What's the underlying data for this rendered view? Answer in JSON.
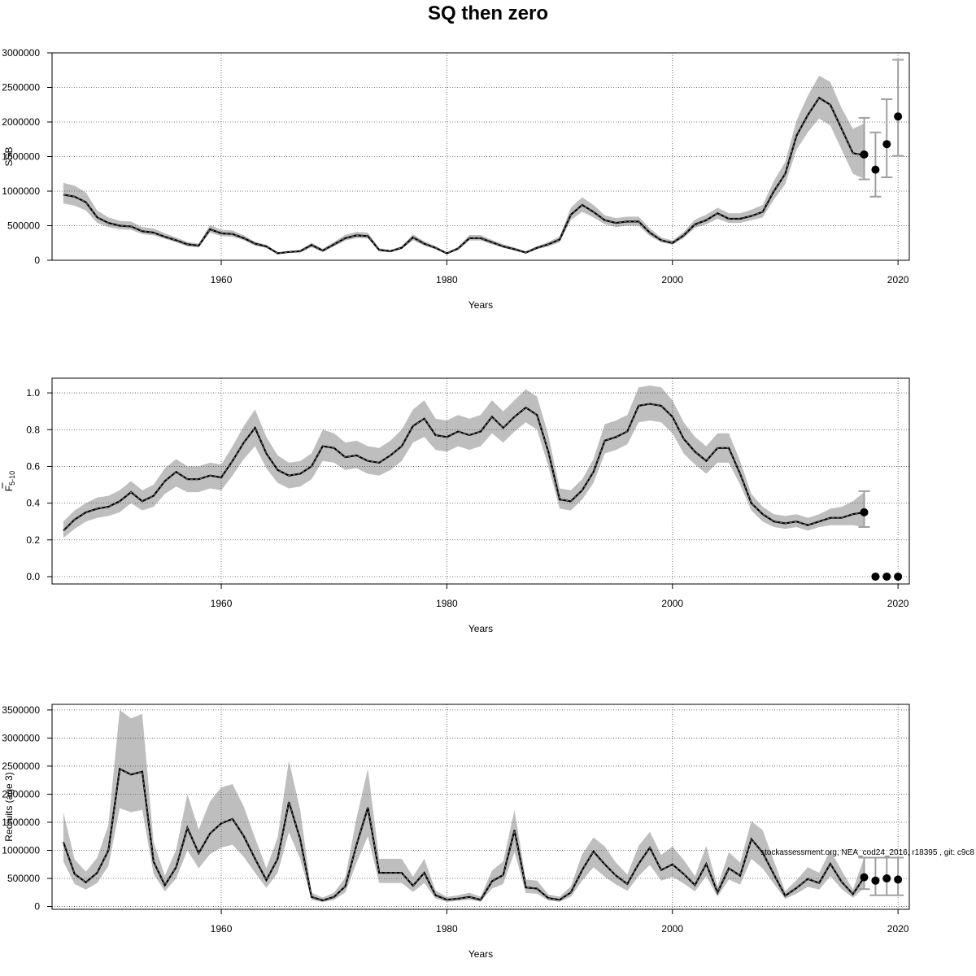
{
  "title": "SQ then zero",
  "footnote": "stockassessment.org, NEA_cod24_2016, r18395 , git: c9c8",
  "colors": {
    "band": "#bebebe",
    "line": "#000000",
    "grid": "#555555",
    "errorbar": "#a0a0a0"
  },
  "chart_data": [
    {
      "type": "line",
      "ylabel": "SSB",
      "xlabel": "Years",
      "xlim": [
        1945,
        2021
      ],
      "ylim": [
        0,
        3000000
      ],
      "xticks": [
        1960,
        1980,
        2000,
        2020
      ],
      "yticks": [
        0,
        500000,
        1000000,
        1500000,
        2000000,
        2500000,
        3000000
      ],
      "ytick_labels": [
        "0",
        "500000",
        "1000000",
        "1500000",
        "2000000",
        "2500000",
        "3000000"
      ],
      "grid": true,
      "x": [
        1946,
        1947,
        1948,
        1949,
        1950,
        1951,
        1952,
        1953,
        1954,
        1955,
        1956,
        1957,
        1958,
        1959,
        1960,
        1961,
        1962,
        1963,
        1964,
        1965,
        1966,
        1967,
        1968,
        1969,
        1970,
        1971,
        1972,
        1973,
        1974,
        1975,
        1976,
        1977,
        1978,
        1979,
        1980,
        1981,
        1982,
        1983,
        1984,
        1985,
        1986,
        1987,
        1988,
        1989,
        1990,
        1991,
        1992,
        1993,
        1994,
        1995,
        1996,
        1997,
        1998,
        1999,
        2000,
        2001,
        2002,
        2003,
        2004,
        2005,
        2006,
        2007,
        2008,
        2009,
        2010,
        2011,
        2012,
        2013,
        2014,
        2015,
        2016,
        2017
      ],
      "estimate": [
        950000,
        920000,
        840000,
        620000,
        540000,
        500000,
        490000,
        420000,
        400000,
        340000,
        290000,
        230000,
        210000,
        450000,
        390000,
        380000,
        320000,
        240000,
        200000,
        100000,
        120000,
        130000,
        220000,
        140000,
        230000,
        320000,
        360000,
        350000,
        150000,
        130000,
        180000,
        330000,
        240000,
        180000,
        100000,
        170000,
        320000,
        320000,
        260000,
        200000,
        160000,
        110000,
        180000,
        230000,
        300000,
        660000,
        800000,
        700000,
        580000,
        540000,
        560000,
        560000,
        400000,
        290000,
        250000,
        360000,
        520000,
        580000,
        680000,
        600000,
        600000,
        640000,
        700000,
        1000000,
        1250000,
        1800000,
        2100000,
        2350000,
        2250000,
        1900000,
        1550000,
        1520000
      ],
      "lower": [
        820000,
        790000,
        720000,
        540000,
        480000,
        450000,
        440000,
        380000,
        360000,
        310000,
        260000,
        200000,
        190000,
        400000,
        350000,
        340000,
        290000,
        210000,
        180000,
        90000,
        105000,
        115000,
        190000,
        120000,
        200000,
        285000,
        320000,
        315000,
        130000,
        115000,
        160000,
        290000,
        210000,
        160000,
        85000,
        150000,
        285000,
        285000,
        230000,
        180000,
        140000,
        95000,
        160000,
        200000,
        260000,
        580000,
        700000,
        620000,
        520000,
        480000,
        500000,
        500000,
        350000,
        260000,
        225000,
        320000,
        470000,
        520000,
        600000,
        540000,
        540000,
        580000,
        620000,
        880000,
        1100000,
        1600000,
        1850000,
        2050000,
        1950000,
        1600000,
        1250000,
        1180000
      ],
      "upper": [
        1120000,
        1080000,
        980000,
        720000,
        620000,
        570000,
        560000,
        480000,
        460000,
        390000,
        330000,
        265000,
        240000,
        510000,
        440000,
        430000,
        360000,
        270000,
        225000,
        115000,
        135000,
        150000,
        255000,
        165000,
        265000,
        370000,
        410000,
        400000,
        175000,
        150000,
        205000,
        375000,
        275000,
        205000,
        115000,
        195000,
        365000,
        365000,
        295000,
        230000,
        185000,
        130000,
        205000,
        265000,
        345000,
        760000,
        910000,
        800000,
        650000,
        610000,
        630000,
        630000,
        460000,
        330000,
        285000,
        410000,
        590000,
        660000,
        760000,
        680000,
        680000,
        730000,
        800000,
        1150000,
        1420000,
        2020000,
        2380000,
        2670000,
        2580000,
        2200000,
        1900000,
        1980000
      ],
      "forecast": [
        {
          "year": 2017,
          "value": 1530000,
          "lower": 1170000,
          "upper": 2060000
        },
        {
          "year": 2018,
          "value": 1310000,
          "lower": 920000,
          "upper": 1850000
        },
        {
          "year": 2019,
          "value": 1680000,
          "lower": 1200000,
          "upper": 2330000
        },
        {
          "year": 2020,
          "value": 2080000,
          "lower": 1510000,
          "upper": 2900000
        }
      ]
    },
    {
      "type": "line",
      "ylabel": "F",
      "ylabel_sub": "5-10",
      "xlabel": "Years",
      "xlim": [
        1945,
        2021
      ],
      "ylim": [
        -0.04,
        1.08
      ],
      "xticks": [
        1960,
        1980,
        2000,
        2020
      ],
      "yticks": [
        0.0,
        0.2,
        0.4,
        0.6,
        0.8,
        1.0
      ],
      "ytick_labels": [
        "0.0",
        "0.2",
        "0.4",
        "0.6",
        "0.8",
        "1.0"
      ],
      "grid": true,
      "x": [
        1946,
        1947,
        1948,
        1949,
        1950,
        1951,
        1952,
        1953,
        1954,
        1955,
        1956,
        1957,
        1958,
        1959,
        1960,
        1961,
        1962,
        1963,
        1964,
        1965,
        1966,
        1967,
        1968,
        1969,
        1970,
        1971,
        1972,
        1973,
        1974,
        1975,
        1976,
        1977,
        1978,
        1979,
        1980,
        1981,
        1982,
        1983,
        1984,
        1985,
        1986,
        1987,
        1988,
        1989,
        1990,
        1991,
        1992,
        1993,
        1994,
        1995,
        1996,
        1997,
        1998,
        1999,
        2000,
        2001,
        2002,
        2003,
        2004,
        2005,
        2006,
        2007,
        2008,
        2009,
        2010,
        2011,
        2012,
        2013,
        2014,
        2015,
        2016,
        2017
      ],
      "estimate": [
        0.25,
        0.31,
        0.35,
        0.37,
        0.38,
        0.41,
        0.46,
        0.41,
        0.44,
        0.52,
        0.57,
        0.53,
        0.53,
        0.55,
        0.54,
        0.63,
        0.73,
        0.81,
        0.67,
        0.58,
        0.55,
        0.56,
        0.6,
        0.71,
        0.7,
        0.65,
        0.66,
        0.63,
        0.62,
        0.66,
        0.71,
        0.82,
        0.86,
        0.77,
        0.76,
        0.79,
        0.77,
        0.79,
        0.87,
        0.81,
        0.87,
        0.92,
        0.88,
        0.68,
        0.42,
        0.41,
        0.47,
        0.57,
        0.74,
        0.76,
        0.79,
        0.93,
        0.94,
        0.93,
        0.87,
        0.75,
        0.68,
        0.63,
        0.7,
        0.7,
        0.56,
        0.4,
        0.34,
        0.3,
        0.29,
        0.3,
        0.28,
        0.3,
        0.32,
        0.32,
        0.34,
        0.35
      ],
      "lower": [
        0.21,
        0.26,
        0.3,
        0.32,
        0.33,
        0.35,
        0.4,
        0.36,
        0.38,
        0.45,
        0.49,
        0.46,
        0.46,
        0.48,
        0.47,
        0.55,
        0.64,
        0.71,
        0.59,
        0.51,
        0.48,
        0.49,
        0.53,
        0.63,
        0.62,
        0.58,
        0.59,
        0.56,
        0.55,
        0.58,
        0.63,
        0.73,
        0.76,
        0.69,
        0.68,
        0.71,
        0.69,
        0.71,
        0.78,
        0.73,
        0.79,
        0.84,
        0.8,
        0.6,
        0.37,
        0.36,
        0.42,
        0.51,
        0.67,
        0.69,
        0.72,
        0.84,
        0.85,
        0.84,
        0.78,
        0.67,
        0.61,
        0.56,
        0.62,
        0.62,
        0.5,
        0.36,
        0.3,
        0.27,
        0.26,
        0.27,
        0.25,
        0.27,
        0.28,
        0.28,
        0.28,
        0.27
      ],
      "upper": [
        0.3,
        0.36,
        0.4,
        0.43,
        0.44,
        0.47,
        0.52,
        0.47,
        0.5,
        0.59,
        0.64,
        0.6,
        0.6,
        0.62,
        0.61,
        0.71,
        0.82,
        0.91,
        0.76,
        0.66,
        0.62,
        0.63,
        0.67,
        0.8,
        0.78,
        0.73,
        0.74,
        0.71,
        0.7,
        0.74,
        0.8,
        0.91,
        0.96,
        0.86,
        0.85,
        0.88,
        0.86,
        0.88,
        0.96,
        0.9,
        0.96,
        1.02,
        0.98,
        0.77,
        0.48,
        0.47,
        0.53,
        0.64,
        0.83,
        0.85,
        0.88,
        1.03,
        1.04,
        1.03,
        0.96,
        0.84,
        0.76,
        0.71,
        0.78,
        0.78,
        0.63,
        0.45,
        0.38,
        0.34,
        0.33,
        0.34,
        0.32,
        0.34,
        0.37,
        0.38,
        0.41,
        0.46
      ],
      "forecast": [
        {
          "year": 2017,
          "value": 0.35,
          "lower": 0.27,
          "upper": 0.465
        },
        {
          "year": 2018,
          "value": 0.0
        },
        {
          "year": 2019,
          "value": 0.0
        },
        {
          "year": 2020,
          "value": 0.0
        }
      ]
    },
    {
      "type": "line",
      "ylabel": "Recruits (age 3)",
      "xlabel": "Years",
      "xlim": [
        1945,
        2021
      ],
      "ylim": [
        -50000,
        3600000
      ],
      "xticks": [
        1960,
        1980,
        2000,
        2020
      ],
      "yticks": [
        0,
        500000,
        1000000,
        1500000,
        2000000,
        2500000,
        3000000,
        3500000
      ],
      "ytick_labels": [
        "0",
        "500000",
        "1000000",
        "1500000",
        "2000000",
        "2500000",
        "3000000",
        "3500000"
      ],
      "grid": true,
      "x": [
        1946,
        1947,
        1948,
        1949,
        1950,
        1951,
        1952,
        1953,
        1954,
        1955,
        1956,
        1957,
        1958,
        1959,
        1960,
        1961,
        1962,
        1963,
        1964,
        1965,
        1966,
        1967,
        1968,
        1969,
        1970,
        1971,
        1972,
        1973,
        1974,
        1975,
        1976,
        1977,
        1978,
        1979,
        1980,
        1981,
        1982,
        1983,
        1984,
        1985,
        1986,
        1987,
        1988,
        1989,
        1990,
        1991,
        1992,
        1993,
        1994,
        1995,
        1996,
        1997,
        1998,
        1999,
        2000,
        2001,
        2002,
        2003,
        2004,
        2005,
        2006,
        2007,
        2008,
        2009,
        2010,
        2011,
        2012,
        2013,
        2014,
        2015,
        2016,
        2017
      ],
      "estimate": [
        1150000,
        580000,
        430000,
        600000,
        1000000,
        2450000,
        2350000,
        2400000,
        800000,
        380000,
        700000,
        1400000,
        950000,
        1300000,
        1480000,
        1560000,
        1250000,
        850000,
        470000,
        850000,
        1860000,
        1200000,
        170000,
        110000,
        170000,
        360000,
        1100000,
        1760000,
        600000,
        600000,
        600000,
        370000,
        600000,
        200000,
        120000,
        140000,
        170000,
        120000,
        450000,
        560000,
        1360000,
        340000,
        320000,
        150000,
        120000,
        250000,
        650000,
        980000,
        750000,
        550000,
        400000,
        760000,
        1050000,
        650000,
        750000,
        580000,
        380000,
        760000,
        250000,
        680000,
        550000,
        1200000,
        960000,
        570000,
        190000,
        330000,
        490000,
        420000,
        760000,
        440000,
        220000,
        520000
      ],
      "lower": [
        800000,
        400000,
        300000,
        420000,
        720000,
        1750000,
        1680000,
        1720000,
        580000,
        270000,
        500000,
        1000000,
        680000,
        930000,
        1050000,
        1100000,
        880000,
        600000,
        330000,
        600000,
        1320000,
        850000,
        120000,
        78000,
        120000,
        250000,
        780000,
        1250000,
        420000,
        420000,
        420000,
        260000,
        420000,
        140000,
        85000,
        100000,
        120000,
        85000,
        320000,
        400000,
        970000,
        240000,
        230000,
        105000,
        85000,
        175000,
        460000,
        700000,
        530000,
        390000,
        280000,
        540000,
        740000,
        460000,
        530000,
        410000,
        270000,
        540000,
        175000,
        480000,
        390000,
        850000,
        680000,
        400000,
        135000,
        230000,
        350000,
        300000,
        540000,
        310000,
        155000,
        330000
      ],
      "upper": [
        1680000,
        840000,
        620000,
        870000,
        1450000,
        3500000,
        3350000,
        3430000,
        1150000,
        550000,
        1010000,
        2000000,
        1370000,
        1870000,
        2120000,
        2180000,
        1780000,
        1220000,
        680000,
        1230000,
        2600000,
        1720000,
        245000,
        160000,
        245000,
        520000,
        1580000,
        2450000,
        850000,
        850000,
        850000,
        530000,
        850000,
        285000,
        170000,
        200000,
        245000,
        175000,
        640000,
        800000,
        1720000,
        480000,
        460000,
        215000,
        175000,
        360000,
        930000,
        1230000,
        1070000,
        780000,
        570000,
        1080000,
        1330000,
        920000,
        1070000,
        830000,
        540000,
        1080000,
        355000,
        970000,
        780000,
        1520000,
        1360000,
        810000,
        270000,
        470000,
        700000,
        600000,
        1000000,
        640000,
        300000,
        870000
      ],
      "forecast": [
        {
          "year": 2017,
          "value": 520000,
          "lower": 310000,
          "upper": 870000
        },
        {
          "year": 2018,
          "value": 460000,
          "lower": 200000,
          "upper": 870000
        },
        {
          "year": 2019,
          "value": 500000,
          "lower": 200000,
          "upper": 870000
        },
        {
          "year": 2020,
          "value": 480000,
          "lower": 200000,
          "upper": 870000
        }
      ]
    }
  ]
}
